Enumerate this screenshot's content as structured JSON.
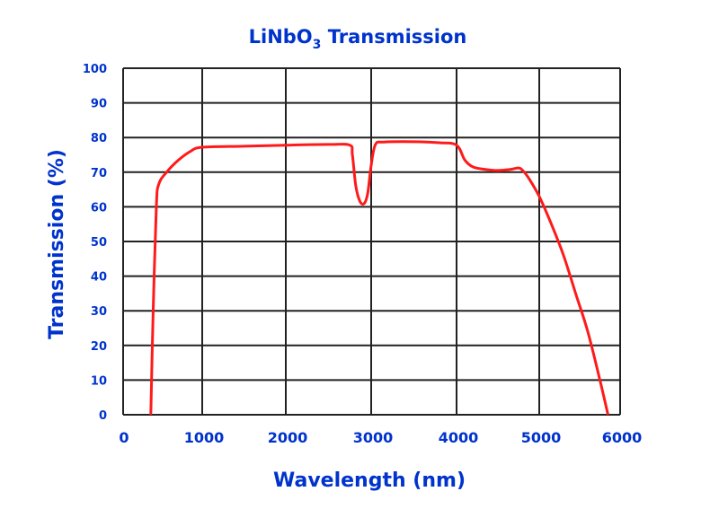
{
  "chart_data": {
    "type": "line",
    "title": "LiNbO",
    "title_subscript": "3",
    "title_suffix": " Transmission",
    "xlabel": "Wavelength (nm)",
    "ylabel": "Transmission (%)",
    "xlim": [
      0,
      6000
    ],
    "ylim": [
      0,
      100
    ],
    "grid": true,
    "x_ticks": [
      "0",
      "1000",
      "2000",
      "3000",
      "4000",
      "5000",
      "6000"
    ],
    "y_ticks": [
      "0",
      "10",
      "20",
      "30",
      "40",
      "50",
      "60",
      "70",
      "80",
      "90",
      "100"
    ],
    "series": [
      {
        "name": "LiNbO3",
        "color": "#ff1a1a",
        "x": [
          350,
          380,
          420,
          450,
          550,
          700,
          850,
          1000,
          1500,
          2000,
          2500,
          2750,
          2780,
          2820,
          2870,
          2920,
          2960,
          3000,
          3050,
          3150,
          3500,
          3800,
          4000,
          4100,
          4200,
          4350,
          4500,
          4650,
          4750,
          4800,
          4880,
          5000,
          5150,
          5300,
          5450,
          5600,
          5750,
          5850
        ],
        "y": [
          0,
          30,
          60,
          66.5,
          70,
          73.5,
          76,
          77.2,
          77.5,
          77.8,
          78,
          77.8,
          75,
          66,
          61.5,
          61,
          64,
          72,
          78,
          78.7,
          78.8,
          78.5,
          77.8,
          73.5,
          71.5,
          70.8,
          70.5,
          70.8,
          71.2,
          70.5,
          68,
          63,
          55,
          46,
          35,
          24,
          10,
          0
        ]
      }
    ]
  }
}
